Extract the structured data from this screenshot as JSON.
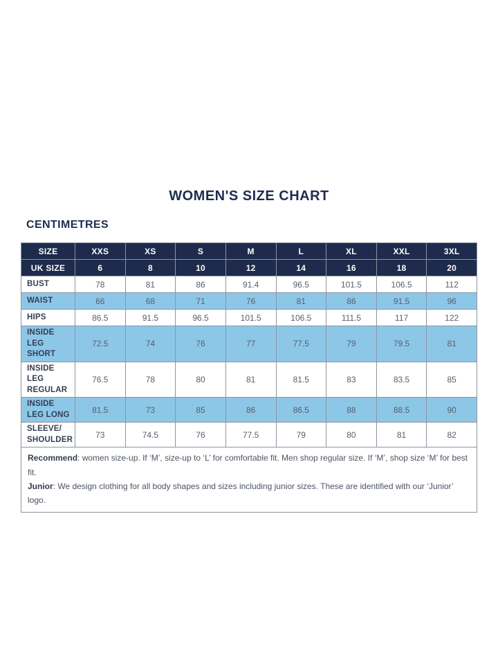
{
  "page": {
    "title": "WOMEN'S SIZE CHART",
    "unit_label": "CENTIMETRES"
  },
  "table": {
    "header_rows": [
      {
        "label": "SIZE",
        "values": [
          "XXS",
          "XS",
          "S",
          "M",
          "L",
          "XL",
          "XXL",
          "3XL"
        ]
      },
      {
        "label": "UK SIZE",
        "values": [
          "6",
          "8",
          "10",
          "12",
          "14",
          "16",
          "18",
          "20"
        ]
      }
    ],
    "rows": [
      {
        "label": "BUST",
        "highlight": false,
        "values": [
          "78",
          "81",
          "86",
          "91.4",
          "96.5",
          "101.5",
          "106.5",
          "112"
        ]
      },
      {
        "label": "WAIST",
        "highlight": true,
        "values": [
          "66",
          "68",
          "71",
          "76",
          "81",
          "86",
          "91.5",
          "96"
        ]
      },
      {
        "label": "HIPS",
        "highlight": false,
        "values": [
          "86.5",
          "91.5",
          "96.5",
          "101.5",
          "106.5",
          "111.5",
          "117",
          "122"
        ]
      },
      {
        "label": "INSIDE LEG SHORT",
        "highlight": true,
        "values": [
          "72.5",
          "74",
          "76",
          "77",
          "77.5",
          "79",
          "79.5",
          "81"
        ]
      },
      {
        "label": "INSIDE LEG REGULAR",
        "highlight": false,
        "values": [
          "76.5",
          "78",
          "80",
          "81",
          "81.5",
          "83",
          "83.5",
          "85"
        ]
      },
      {
        "label": "INSIDE LEG LONG",
        "highlight": true,
        "values": [
          "81.5",
          "73",
          "85",
          "86",
          "86.5",
          "88",
          "88.5",
          "90"
        ]
      },
      {
        "label": "SLEEVE/ SHOULDER",
        "highlight": false,
        "values": [
          "73",
          "74.5",
          "76",
          "77.5",
          "79",
          "80",
          "81",
          "82"
        ]
      }
    ]
  },
  "notes": [
    {
      "label": "Recommend",
      "text": ": women size-up. If ‘M’, size-up to ‘L’ for comfortable fit. Men shop regular size. If ‘M’, shop size ‘M’ for best fit."
    },
    {
      "label": "Junior",
      "text": ": We design clothing for all body shapes and sizes including junior sizes. These are identified with our ‘Junior’ logo."
    }
  ],
  "colors": {
    "navy": "#1f2b4c",
    "highlight": "#8dc7e8",
    "accent_text": "#1e2c4f",
    "border": "#8c94a0",
    "num_text": "#555e6b",
    "label_text": "#323e52",
    "note_text": "#4b5462"
  }
}
